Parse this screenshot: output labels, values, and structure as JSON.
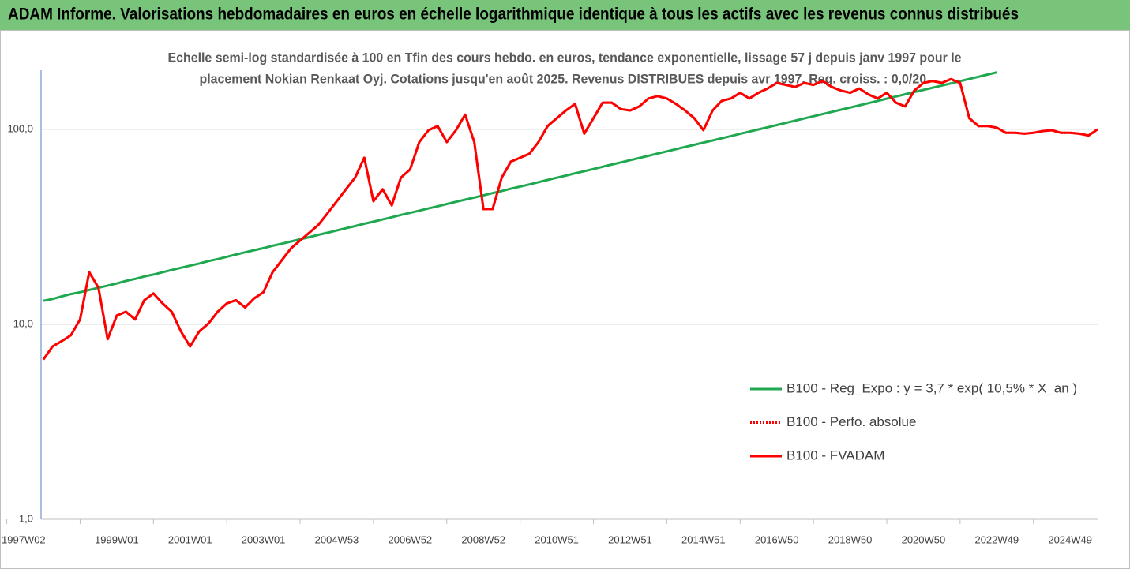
{
  "chart_data": {
    "type": "line",
    "title": "ADAM Informe. Valorisations hebdomadaires en euros en échelle logarithmique identique à tous les actifs avec les revenus connus distribués",
    "subtitle": [
      "Echelle semi-log standardisée à 100 en Tfin des cours hebdo. en euros, tendance exponentielle, lissage 57 j depuis janv 1997 pour le",
      "placement Nokian Renkaat Oyj. Cotations jusqu'en août 2025. Revenus DISTRIBUES depuis avr 1997. Reg. croiss. : 0,0/20."
    ],
    "log_y": true,
    "grid": true,
    "legend": "right",
    "ylim": [
      1,
      201
    ],
    "yticks": [
      {
        "value": 1,
        "label": "1,0"
      },
      {
        "value": 10,
        "label": "10,0"
      },
      {
        "value": 100,
        "label": "100,0"
      }
    ],
    "categories": [
      "1997W02",
      null,
      null,
      null,
      null,
      null,
      null,
      null,
      "1999W01",
      null,
      null,
      null,
      null,
      null,
      null,
      null,
      "2001W01",
      null,
      null,
      null,
      null,
      null,
      null,
      null,
      "2003W01",
      null,
      null,
      null,
      null,
      null,
      null,
      null,
      "2004W53",
      null,
      null,
      null,
      null,
      null,
      null,
      null,
      "2006W52",
      null,
      null,
      null,
      null,
      null,
      null,
      null,
      "2008W52",
      null,
      null,
      null,
      null,
      null,
      null,
      null,
      "2010W51",
      null,
      null,
      null,
      null,
      null,
      null,
      null,
      "2012W51",
      null,
      null,
      null,
      null,
      null,
      null,
      null,
      "2014W51",
      null,
      null,
      null,
      null,
      null,
      null,
      null,
      "2016W50",
      null,
      null,
      null,
      null,
      null,
      null,
      null,
      "2018W50",
      null,
      null,
      null,
      null,
      null,
      null,
      null,
      "2020W50",
      null,
      null,
      null,
      null,
      null,
      null,
      null,
      "2022W49",
      null,
      null,
      null,
      null,
      null,
      null,
      null,
      "2024W49",
      null,
      null,
      null
    ],
    "series": [
      {
        "name": "B100 - Reg_Expo : y = 3,7 * exp( 10,5% *  X_an )",
        "color": "#1fa84f",
        "line_style": "solid",
        "values": [
          13.2,
          13.5,
          13.9,
          14.3,
          14.6,
          15.0,
          15.4,
          15.8,
          16.2,
          16.7,
          17.1,
          17.6,
          18.0,
          18.5,
          19.0,
          19.5,
          20.0,
          20.5,
          21.1,
          21.6,
          22.2,
          22.8,
          23.4,
          24.0,
          24.6,
          25.3,
          25.9,
          26.6,
          27.3,
          28.0,
          28.8,
          29.5,
          30.3,
          31.1,
          31.9,
          32.8,
          33.6,
          34.5,
          35.4,
          36.4,
          37.3,
          38.3,
          39.3,
          40.3,
          41.4,
          42.5,
          43.6,
          44.7,
          45.9,
          47.1,
          48.3,
          49.6,
          50.9,
          52.2,
          53.6,
          55.0,
          56.5,
          57.9,
          59.5,
          61.0,
          62.6,
          64.3,
          66.0,
          67.7,
          69.5,
          71.3,
          73.2,
          75.1,
          77.1,
          79.1,
          81.2,
          83.3,
          85.5,
          87.7,
          90.0,
          92.4,
          94.8,
          97.3,
          99.9,
          102.5,
          105.2,
          107.9,
          110.8,
          113.7,
          116.7,
          119.7,
          122.9,
          126.1,
          129.4,
          132.8,
          136.3,
          139.9,
          143.6,
          147.3,
          151.2,
          155.2,
          159.3,
          163.4,
          167.7,
          172.1,
          176.7,
          181.3,
          186.1,
          191.0,
          196.0,
          null,
          null,
          null,
          null,
          null,
          null,
          null,
          null,
          null,
          null,
          null
        ]
      },
      {
        "name": "B100 - Perfo. absolue",
        "color": "#ff0000",
        "line_style": "dotted",
        "values": [
          6.6,
          7.7,
          8.2,
          8.8,
          10.6,
          18.5,
          15.4,
          8.4,
          11.1,
          11.6,
          10.6,
          13.3,
          14.4,
          12.8,
          11.6,
          9.2,
          7.7,
          9.2,
          10.1,
          11.6,
          12.8,
          13.3,
          12.2,
          13.6,
          14.6,
          18.5,
          21.3,
          24.5,
          26.9,
          29.5,
          32.4,
          37.2,
          42.8,
          49.3,
          56.6,
          71.5,
          42.8,
          49.3,
          40.8,
          56.6,
          62.2,
          86.1,
          99,
          104,
          86.1,
          99,
          119,
          86.1,
          39.0,
          39.0,
          56.6,
          68.3,
          71.5,
          74.9,
          86.1,
          104,
          114,
          125,
          135,
          95,
          114,
          137,
          137,
          127,
          125,
          131,
          144,
          148,
          144,
          135,
          125,
          114,
          99,
          125,
          140,
          144,
          154,
          144,
          154,
          162,
          173,
          169,
          165,
          173,
          169,
          177,
          165,
          158,
          154,
          162,
          151,
          144,
          154,
          137,
          131,
          158,
          173,
          177,
          173,
          181,
          173,
          114,
          104,
          104,
          102,
          96,
          96,
          95,
          96,
          98,
          99,
          96,
          96,
          95,
          93,
          100
        ]
      },
      {
        "name": "B100 - FVADAM",
        "color": "#ff0000",
        "line_style": "solid",
        "values": [
          6.6,
          7.7,
          8.2,
          8.8,
          10.6,
          18.5,
          15.4,
          8.4,
          11.1,
          11.6,
          10.6,
          13.3,
          14.4,
          12.8,
          11.6,
          9.2,
          7.7,
          9.2,
          10.1,
          11.6,
          12.8,
          13.3,
          12.2,
          13.6,
          14.6,
          18.5,
          21.3,
          24.5,
          26.9,
          29.5,
          32.4,
          37.2,
          42.8,
          49.3,
          56.6,
          71.5,
          42.8,
          49.3,
          40.8,
          56.6,
          62.2,
          86.1,
          99,
          104,
          86.1,
          99,
          119,
          86.1,
          39.0,
          39.0,
          56.6,
          68.3,
          71.5,
          74.9,
          86.1,
          104,
          114,
          125,
          135,
          95,
          114,
          137,
          137,
          127,
          125,
          131,
          144,
          148,
          144,
          135,
          125,
          114,
          99,
          125,
          140,
          144,
          154,
          144,
          154,
          162,
          173,
          169,
          165,
          173,
          169,
          177,
          165,
          158,
          154,
          162,
          151,
          144,
          154,
          137,
          131,
          158,
          173,
          177,
          173,
          181,
          173,
          114,
          104,
          104,
          102,
          96,
          96,
          95,
          96,
          98,
          99,
          96,
          96,
          95,
          93,
          100
        ]
      }
    ]
  }
}
